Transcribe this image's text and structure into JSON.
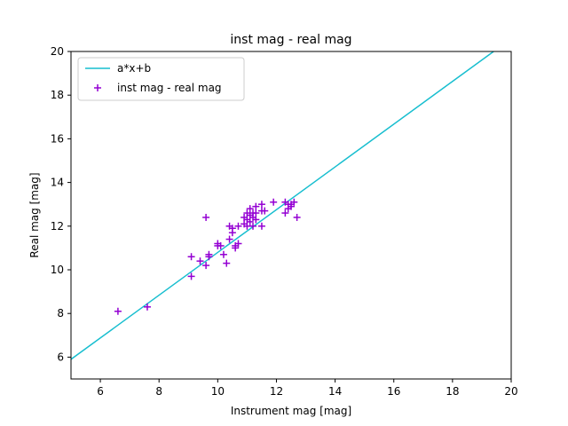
{
  "chart_data": {
    "type": "scatter",
    "title": "inst mag - real mag",
    "xlabel": "Instrument mag [mag]",
    "ylabel": "Real mag [mag]",
    "xlim": [
      5,
      20
    ],
    "ylim": [
      5,
      20
    ],
    "xticks": [
      6,
      8,
      10,
      12,
      14,
      16,
      18,
      20
    ],
    "yticks": [
      6,
      8,
      10,
      12,
      14,
      16,
      18,
      20
    ],
    "grid": false,
    "legend_position": "top-left",
    "series": [
      {
        "name": "a*x+b",
        "kind": "line",
        "color": "#17becf",
        "x": [
          5.0,
          19.4
        ],
        "y": [
          5.9,
          20.0
        ]
      },
      {
        "name": "inst mag - real mag",
        "kind": "scatter",
        "marker": "+",
        "color": "#9400d3",
        "x": [
          6.6,
          7.6,
          9.1,
          9.1,
          9.4,
          9.6,
          9.6,
          9.7,
          9.7,
          10.0,
          10.0,
          10.1,
          10.2,
          10.3,
          10.4,
          10.4,
          10.5,
          10.5,
          10.6,
          10.6,
          10.7,
          10.7,
          10.9,
          10.9,
          11.0,
          11.0,
          11.0,
          11.1,
          11.1,
          11.1,
          11.2,
          11.2,
          11.2,
          11.3,
          11.3,
          11.3,
          11.5,
          11.5,
          11.5,
          11.6,
          11.9,
          12.3,
          12.3,
          12.4,
          12.4,
          12.5,
          12.5,
          12.6,
          12.7
        ],
        "y": [
          8.1,
          8.3,
          9.7,
          10.6,
          10.4,
          10.2,
          12.4,
          10.7,
          10.6,
          11.1,
          11.2,
          11.1,
          10.7,
          10.3,
          11.4,
          12.0,
          11.7,
          11.9,
          11.1,
          11.0,
          11.2,
          12.0,
          12.1,
          12.4,
          12.0,
          12.3,
          12.6,
          12.2,
          12.5,
          12.8,
          12.0,
          12.4,
          12.6,
          12.3,
          12.6,
          12.9,
          12.0,
          12.7,
          13.0,
          12.7,
          13.1,
          12.6,
          13.1,
          12.8,
          13.0,
          12.9,
          13.0,
          13.1,
          12.4
        ]
      }
    ]
  }
}
